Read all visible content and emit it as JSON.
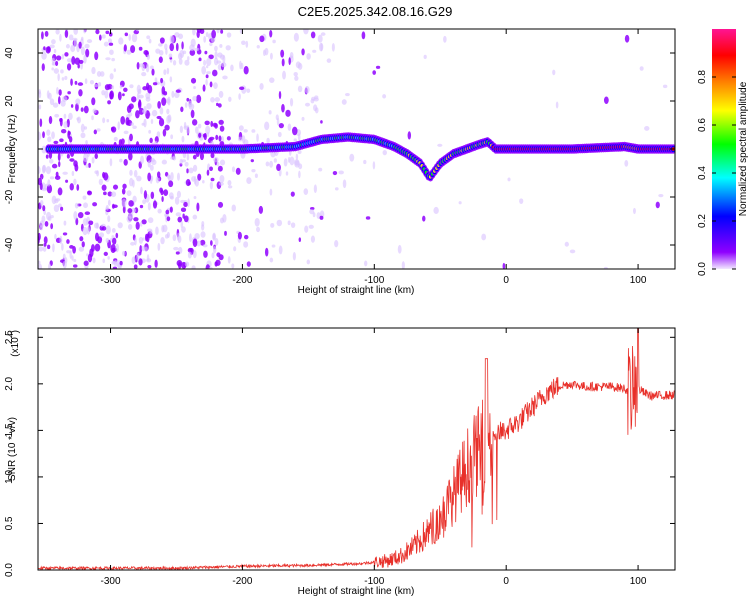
{
  "figure_title": "C2E5.2025.342.08.16.G29",
  "chart_data": [
    {
      "type": "heatmap",
      "name": "spectrogram",
      "xlabel": "Height of straight line (km)",
      "ylabel": "Frequency (Hz)",
      "xlim": [
        -355,
        128
      ],
      "ylim": [
        -50,
        50
      ],
      "xticks": [
        -300,
        -200,
        -100,
        0,
        100
      ],
      "xtick_labels": [
        "-300",
        "-200",
        "-100",
        "0",
        "100"
      ],
      "yticks": [
        -40,
        -20,
        0,
        20,
        40
      ],
      "ytick_labels": [
        "-40",
        "-20",
        "0",
        "20",
        "40"
      ],
      "colorbar": {
        "label": "Normalized spectral amplitude",
        "range": [
          0,
          1
        ],
        "ticks": [
          0.0,
          0.2,
          0.4,
          0.6,
          0.8
        ],
        "tick_labels": [
          "0.0",
          "0.2",
          "0.4",
          "0.6",
          "0.8"
        ],
        "colors": [
          "#f2e8ff",
          "#8f00ff",
          "#0000ff",
          "#00ffff",
          "#00ff00",
          "#ffff00",
          "#ff7f00",
          "#ff0000",
          "#ff1493"
        ]
      },
      "ridge_frequency": {
        "x": [
          -345,
          -300,
          -250,
          -200,
          -160,
          -140,
          -120,
          -100,
          -85,
          -75,
          -65,
          -58,
          -50,
          -40,
          -30,
          -20,
          -14,
          -8,
          0,
          50,
          90,
          100,
          128
        ],
        "y": [
          0,
          0,
          0,
          0,
          1,
          4,
          5,
          4,
          1,
          -2,
          -6,
          -12,
          -6,
          -2,
          0,
          2,
          3,
          0,
          0,
          0,
          1,
          0,
          0
        ]
      }
    },
    {
      "type": "line",
      "name": "snr",
      "xlabel": "Height of straight line (km)",
      "ylabel": "SNR (10 * v/v)",
      "y_multiplier_label": "(x10",
      "y_multiplier_exp": "4",
      "y_multiplier_close": ")",
      "xlim": [
        -355,
        128
      ],
      "ylim": [
        0,
        2.6
      ],
      "xticks": [
        -300,
        -200,
        -100,
        0,
        100
      ],
      "xtick_labels": [
        "-300",
        "-200",
        "-100",
        "0",
        "100"
      ],
      "yticks": [
        0.0,
        0.5,
        1.0,
        1.5,
        2.0,
        2.5
      ],
      "ytick_labels": [
        "0.0",
        "0.5",
        "1.0",
        "1.5",
        "2.0",
        "2.5"
      ],
      "color": "#e8302a",
      "envelope": {
        "x": [
          -355,
          -250,
          -200,
          -150,
          -110,
          -90,
          -80,
          -70,
          -60,
          -50,
          -40,
          -30,
          -20,
          -10,
          0,
          10,
          20,
          30,
          40,
          50,
          60,
          80,
          90,
          95,
          100,
          105,
          110,
          128
        ],
        "y": [
          0.02,
          0.02,
          0.04,
          0.05,
          0.07,
          0.1,
          0.15,
          0.25,
          0.4,
          0.55,
          0.8,
          1.1,
          1.3,
          1.45,
          1.5,
          1.6,
          1.75,
          1.9,
          1.98,
          2.0,
          1.97,
          1.97,
          1.95,
          1.9,
          1.95,
          1.9,
          1.87,
          1.88
        ]
      }
    }
  ]
}
